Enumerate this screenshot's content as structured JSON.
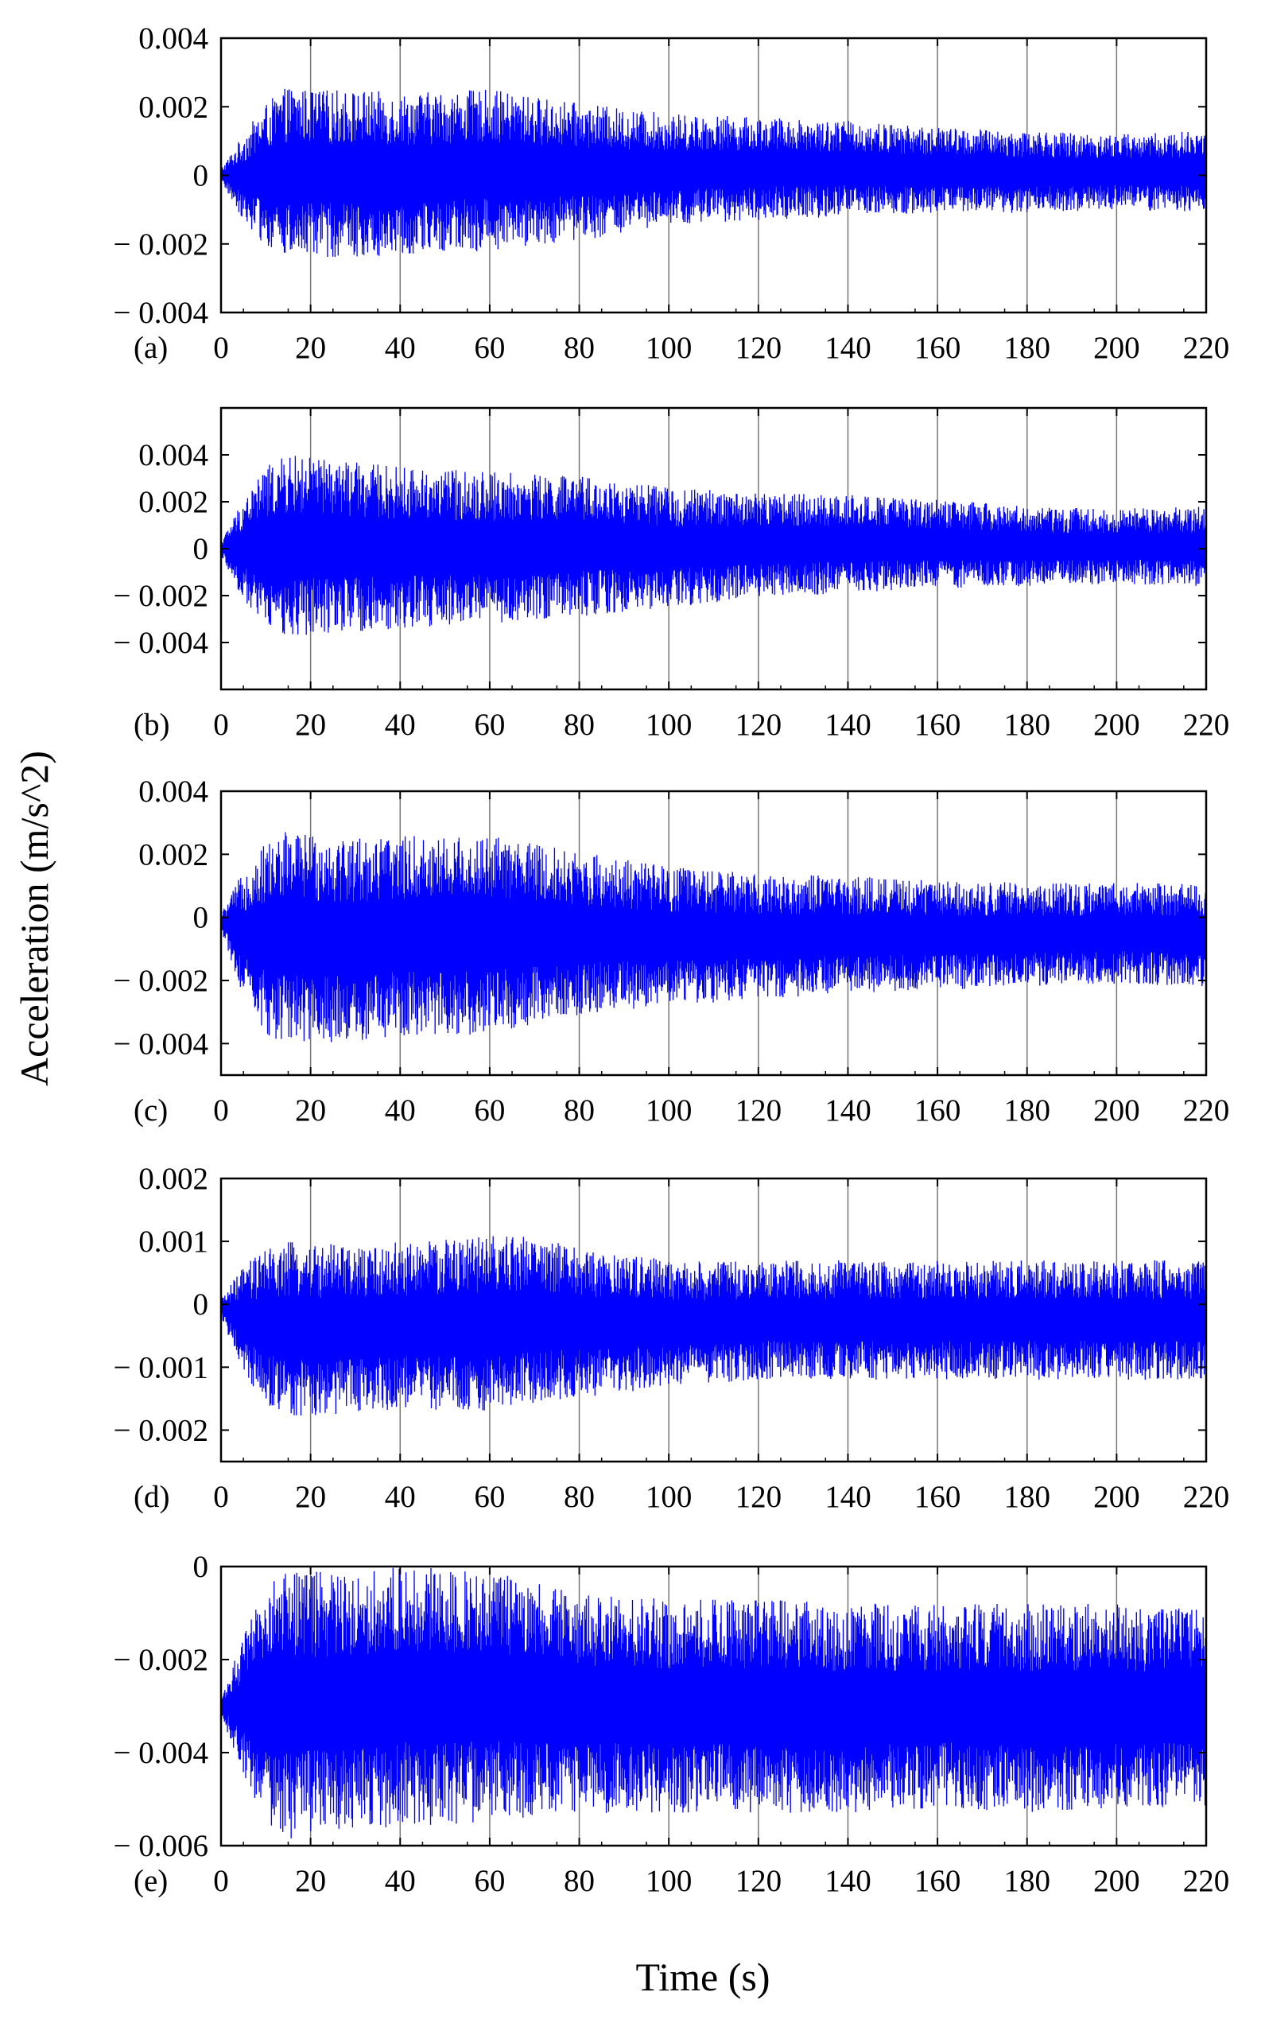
{
  "figure": {
    "ylabel": "Acceleration (m/s^2)",
    "xlabel": "Time (s)"
  },
  "chart_data": [
    {
      "type": "line",
      "label": "(a)",
      "color": "#0000ff",
      "grid": true,
      "xlim": [
        0,
        220
      ],
      "ylim": [
        -0.004,
        0.004
      ],
      "x_ticks": [
        0,
        20,
        40,
        60,
        80,
        100,
        120,
        140,
        160,
        180,
        200,
        220
      ],
      "x_tick_labels": [
        "0",
        "20",
        "40",
        "60",
        "80",
        "100",
        "120",
        "140",
        "160",
        "180",
        "200",
        "220"
      ],
      "y_ticks": [
        0.004,
        0.002,
        0,
        -0.002,
        -0.004
      ],
      "y_tick_labels": [
        "0.004",
        "0.002",
        "0",
        "− 0.002",
        "− 0.004"
      ],
      "signal": {
        "description_x": "time (s)",
        "envelope_time": [
          0,
          5,
          10,
          15,
          20,
          30,
          40,
          60,
          80,
          100,
          120,
          140,
          160,
          180,
          200,
          220
        ],
        "upper_envelope": [
          0.0002,
          0.0012,
          0.0021,
          0.0026,
          0.0025,
          0.0025,
          0.0024,
          0.0025,
          0.0021,
          0.0018,
          0.0017,
          0.0016,
          0.0014,
          0.0013,
          0.0012,
          0.0013
        ],
        "lower_envelope": [
          -0.0002,
          -0.0013,
          -0.0021,
          -0.0024,
          -0.0024,
          -0.0024,
          -0.0023,
          -0.0022,
          -0.0019,
          -0.0015,
          -0.0013,
          -0.0012,
          -0.0011,
          -0.0011,
          -0.001,
          -0.0011
        ]
      }
    },
    {
      "type": "line",
      "label": "(b)",
      "color": "#0000ff",
      "grid": true,
      "xlim": [
        0,
        220
      ],
      "ylim": [
        -0.006,
        0.006
      ],
      "x_ticks": [
        0,
        20,
        40,
        60,
        80,
        100,
        120,
        140,
        160,
        180,
        200,
        220
      ],
      "x_tick_labels": [
        "0",
        "20",
        "40",
        "60",
        "80",
        "100",
        "120",
        "140",
        "160",
        "180",
        "200",
        "220"
      ],
      "y_ticks": [
        0.004,
        0.002,
        0,
        -0.002,
        -0.004
      ],
      "y_tick_labels": [
        "0.004",
        "0.002",
        "0",
        "− 0.002",
        "− 0.004"
      ],
      "signal": {
        "description_x": "time (s)",
        "envelope_time": [
          0,
          5,
          10,
          15,
          20,
          30,
          40,
          60,
          80,
          100,
          120,
          140,
          160,
          180,
          200,
          220
        ],
        "upper_envelope": [
          0.0003,
          0.0022,
          0.0035,
          0.004,
          0.0039,
          0.0037,
          0.0035,
          0.0033,
          0.0031,
          0.0026,
          0.0024,
          0.0023,
          0.0021,
          0.0018,
          0.0017,
          0.0018
        ],
        "lower_envelope": [
          -0.0003,
          -0.0022,
          -0.0033,
          -0.0038,
          -0.0037,
          -0.0036,
          -0.0034,
          -0.0032,
          -0.0029,
          -0.0025,
          -0.0021,
          -0.0019,
          -0.0017,
          -0.0016,
          -0.0015,
          -0.0016
        ]
      }
    },
    {
      "type": "line",
      "label": "(c)",
      "color": "#0000ff",
      "grid": true,
      "xlim": [
        0,
        220
      ],
      "ylim": [
        -0.005,
        0.004
      ],
      "x_ticks": [
        0,
        20,
        40,
        60,
        80,
        100,
        120,
        140,
        160,
        180,
        200,
        220
      ],
      "x_tick_labels": [
        "0",
        "20",
        "40",
        "60",
        "80",
        "100",
        "120",
        "140",
        "160",
        "180",
        "200",
        "220"
      ],
      "y_ticks": [
        0.004,
        0.002,
        0,
        -0.002,
        -0.004
      ],
      "y_tick_labels": [
        "0.004",
        "0.002",
        "0",
        "− 0.002",
        "− 0.004"
      ],
      "signal": {
        "description_x": "time (s)",
        "envelope_time": [
          0,
          5,
          10,
          15,
          20,
          30,
          40,
          60,
          80,
          100,
          120,
          140,
          160,
          180,
          200,
          220
        ],
        "upper_envelope": [
          0.0001,
          0.0015,
          0.0024,
          0.0028,
          0.0027,
          0.0026,
          0.0026,
          0.0026,
          0.0021,
          0.0016,
          0.0014,
          0.0013,
          0.0012,
          0.0011,
          0.0011,
          0.0011
        ],
        "lower_envelope": [
          -0.0004,
          -0.0025,
          -0.0037,
          -0.0041,
          -0.004,
          -0.0039,
          -0.0038,
          -0.0037,
          -0.0031,
          -0.0028,
          -0.0026,
          -0.0024,
          -0.0023,
          -0.0022,
          -0.0021,
          -0.0022
        ]
      }
    },
    {
      "type": "line",
      "label": "(d)",
      "color": "#0000ff",
      "grid": true,
      "xlim": [
        0,
        220
      ],
      "ylim": [
        -0.0025,
        0.002
      ],
      "x_ticks": [
        0,
        20,
        40,
        60,
        80,
        100,
        120,
        140,
        160,
        180,
        200,
        220
      ],
      "x_tick_labels": [
        "0",
        "20",
        "40",
        "60",
        "80",
        "100",
        "120",
        "140",
        "160",
        "180",
        "200",
        "220"
      ],
      "y_ticks": [
        0.002,
        0.001,
        0,
        -0.001,
        -0.002
      ],
      "y_tick_labels": [
        "0.002",
        "0.001",
        "0",
        "− 0.001",
        "− 0.002"
      ],
      "signal": {
        "description_x": "time (s)",
        "envelope_time": [
          0,
          5,
          10,
          15,
          20,
          30,
          40,
          60,
          70,
          80,
          100,
          120,
          140,
          160,
          180,
          200,
          220
        ],
        "upper_envelope": [
          0.0001,
          0.0006,
          0.0009,
          0.001,
          0.001,
          0.0009,
          0.001,
          0.0011,
          0.0011,
          0.0009,
          0.0007,
          0.0007,
          0.0007,
          0.0007,
          0.0007,
          0.0007,
          0.0007
        ],
        "lower_envelope": [
          -0.0002,
          -0.0011,
          -0.0016,
          -0.0018,
          -0.0018,
          -0.0017,
          -0.0017,
          -0.0017,
          -0.0016,
          -0.0015,
          -0.0013,
          -0.0012,
          -0.0012,
          -0.0012,
          -0.0012,
          -0.0012,
          -0.0012
        ]
      }
    },
    {
      "type": "line",
      "label": "(e)",
      "color": "#0000ff",
      "grid": true,
      "xlim": [
        0,
        220
      ],
      "ylim": [
        -0.006,
        0
      ],
      "x_ticks": [
        0,
        20,
        40,
        60,
        80,
        100,
        120,
        140,
        160,
        180,
        200,
        220
      ],
      "x_tick_labels": [
        "0",
        "20",
        "40",
        "60",
        "80",
        "100",
        "120",
        "140",
        "160",
        "180",
        "200",
        "220"
      ],
      "y_ticks": [
        0,
        -0.002,
        -0.004,
        -0.006
      ],
      "y_tick_labels": [
        "0",
        "− 0.002",
        "− 0.004",
        "− 0.006"
      ],
      "signal": {
        "description_x": "time (s)",
        "envelope_time": [
          0,
          5,
          10,
          15,
          20,
          30,
          40,
          60,
          80,
          100,
          120,
          140,
          160,
          180,
          200,
          220
        ],
        "upper_envelope": [
          -0.0028,
          -0.0015,
          -0.0004,
          0,
          -0.0001,
          -0.0001,
          0,
          -0.0001,
          -0.0006,
          -0.0007,
          -0.0007,
          -0.0008,
          -0.0008,
          -0.0008,
          -0.0008,
          -0.0009
        ],
        "lower_envelope": [
          -0.0032,
          -0.0045,
          -0.0055,
          -0.0059,
          -0.0058,
          -0.0057,
          -0.0056,
          -0.0055,
          -0.0053,
          -0.0053,
          -0.0053,
          -0.0053,
          -0.0052,
          -0.0053,
          -0.0052,
          -0.0052
        ]
      }
    }
  ]
}
